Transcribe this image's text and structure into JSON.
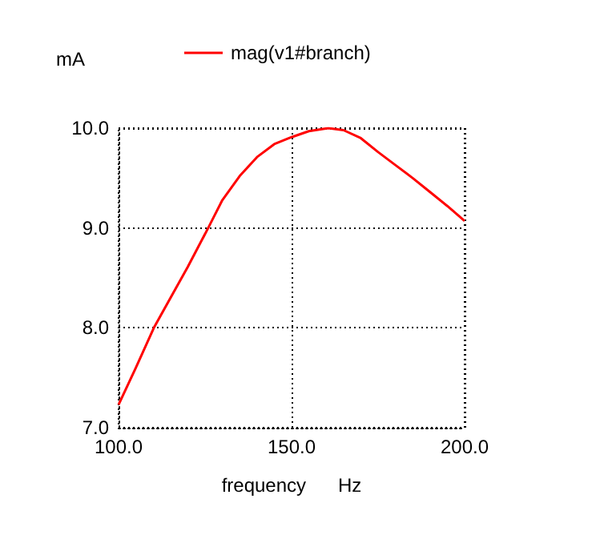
{
  "chart_data": {
    "type": "line",
    "xlabel": "frequency      Hz",
    "ylabel": "mA",
    "x": [
      100,
      105,
      110.2,
      115,
      120,
      125.9,
      130,
      135,
      140,
      145,
      150,
      155,
      160.6,
      165,
      170,
      175,
      180,
      185,
      190,
      195,
      200
    ],
    "series": [
      {
        "name": "mag(v1#branch)",
        "color": "#ff0000",
        "values": [
          7.23,
          7.6,
          8.0,
          8.3,
          8.61,
          9.0,
          9.28,
          9.52,
          9.71,
          9.84,
          9.91,
          9.97,
          10.0,
          9.98,
          9.9,
          9.76,
          9.63,
          9.5,
          9.36,
          9.22,
          9.07
        ]
      }
    ],
    "xlim": [
      100,
      200
    ],
    "xticks": [
      {
        "value": 100,
        "label": "100.0"
      },
      {
        "value": 150,
        "label": "150.0"
      },
      {
        "value": 200,
        "label": "200.0"
      }
    ],
    "ylim": [
      7,
      10
    ],
    "yticks": [
      {
        "value": 7,
        "label": "7.0"
      },
      {
        "value": 8,
        "label": "8.0"
      },
      {
        "value": 9,
        "label": "9.0"
      },
      {
        "value": 10,
        "label": "10.0"
      }
    ],
    "grid": true,
    "legend": "top",
    "marker": "none",
    "line_style": "solid"
  }
}
